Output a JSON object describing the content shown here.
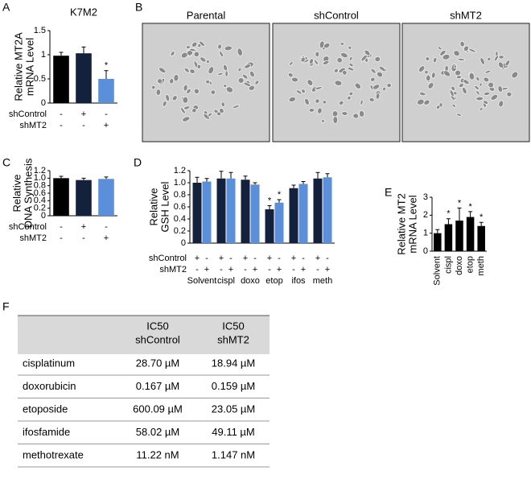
{
  "chart_data": [
    {
      "label": "A",
      "type": "bar",
      "title": "K7M2",
      "y_label": [
        "Relative MT2A",
        "mRNA Level"
      ],
      "ylim": [
        0,
        1.5
      ],
      "yticks": [
        0,
        0.5,
        1,
        1.5
      ],
      "series": [
        {
          "colors": [
            "#000000",
            "#14213d",
            "#5b8fd9"
          ],
          "values": [
            0.98,
            1.03,
            0.5
          ],
          "errors": [
            0.07,
            0.13,
            0.17
          ],
          "annotations": [
            null,
            null,
            "*"
          ]
        }
      ],
      "conditions": [
        {
          "label": "shControl",
          "signs": [
            "-",
            "+",
            "-"
          ]
        },
        {
          "label": "shMT2",
          "signs": [
            "-",
            "-",
            "+"
          ]
        }
      ]
    },
    {
      "label": "C",
      "type": "bar",
      "y_label": [
        "Relative",
        "DNA Synthesis"
      ],
      "ylim": [
        0,
        1.2
      ],
      "yticks": [
        0,
        0.2,
        0.4,
        0.6,
        0.8,
        {
          "value": 1,
          "label": "1.0"
        },
        1.2
      ],
      "series": [
        {
          "colors": [
            "#000000",
            "#14213d",
            "#5b8fd9"
          ],
          "values": [
            1.0,
            0.95,
            0.98
          ],
          "errors": [
            0.05,
            0.05,
            0.05
          ],
          "annotations": [
            null,
            null,
            null
          ]
        }
      ],
      "conditions": [
        {
          "label": "shControl",
          "signs": [
            "-",
            "+",
            "-"
          ]
        },
        {
          "label": "shMT2",
          "signs": [
            "-",
            "-",
            "+"
          ]
        }
      ]
    },
    {
      "label": "D",
      "type": "bar",
      "y_label": [
        "Relative",
        "GSH Level"
      ],
      "ylim": [
        0,
        1.2
      ],
      "yticks": [
        0,
        0.2,
        0.4,
        0.6,
        0.8,
        {
          "value": 1,
          "label": "1.0"
        },
        1.2
      ],
      "categories": [
        "Solvent",
        "cispl",
        "doxo",
        "etop",
        "ifos",
        "meth"
      ],
      "series": [
        {
          "color": "#14213d",
          "values": [
            1.0,
            1.07,
            1.05,
            0.56,
            0.91,
            1.07
          ],
          "errors": [
            0.09,
            0.12,
            0.06,
            0.06,
            0.05,
            0.1
          ],
          "annotations": [
            null,
            null,
            null,
            "*",
            null,
            null
          ]
        },
        {
          "color": "#5b8fd9",
          "values": [
            1.02,
            1.07,
            0.97,
            0.67,
            0.98,
            1.09
          ],
          "errors": [
            0.05,
            0.1,
            0.03,
            0.05,
            0.04,
            0.06
          ],
          "annotations": [
            null,
            null,
            null,
            "*",
            null,
            null
          ]
        }
      ],
      "conditions": [
        {
          "label": "shControl",
          "signs": [
            "+",
            "-",
            "+",
            "-",
            "+",
            "-",
            "+",
            "-",
            "+",
            "-",
            "+",
            "-"
          ]
        },
        {
          "label": "shMT2",
          "signs": [
            "-",
            "+",
            "-",
            "+",
            "-",
            "+",
            "-",
            "+",
            "-",
            "+",
            "-",
            "+"
          ]
        }
      ]
    },
    {
      "label": "E",
      "type": "bar",
      "y_label": [
        "Relative MT2",
        "mRNA Level"
      ],
      "ylim": [
        0,
        3
      ],
      "yticks": [
        0,
        1,
        2,
        3
      ],
      "categories": [
        "Solvent",
        "cispl",
        "doxo",
        "etop",
        "meth"
      ],
      "series": [
        {
          "color": "#000000",
          "values": [
            1.0,
            1.5,
            1.7,
            1.9,
            1.4
          ],
          "errors": [
            0.2,
            0.3,
            0.7,
            0.3,
            0.2
          ],
          "annotations": [
            null,
            "*",
            "*",
            "*",
            "*"
          ]
        }
      ]
    }
  ],
  "images": {
    "label": "B",
    "titles": [
      "Parental",
      "shControl",
      "shMT2"
    ]
  },
  "table": {
    "label": "F",
    "header": [
      null,
      [
        "IC50",
        "shControl"
      ],
      [
        "IC50",
        "shMT2"
      ]
    ],
    "rows": [
      [
        "cisplatinum",
        "28.70 µM",
        "18.94 µM"
      ],
      [
        "doxorubicin",
        "0.167 µM",
        "0.159 µM"
      ],
      [
        "etoposide",
        "600.09 µM",
        "23.05 µM"
      ],
      [
        "ifosfamide",
        "58.02 µM",
        "49.11 µM"
      ],
      [
        "methotrexate",
        "11.22 nM",
        "1.147 nM"
      ]
    ]
  }
}
